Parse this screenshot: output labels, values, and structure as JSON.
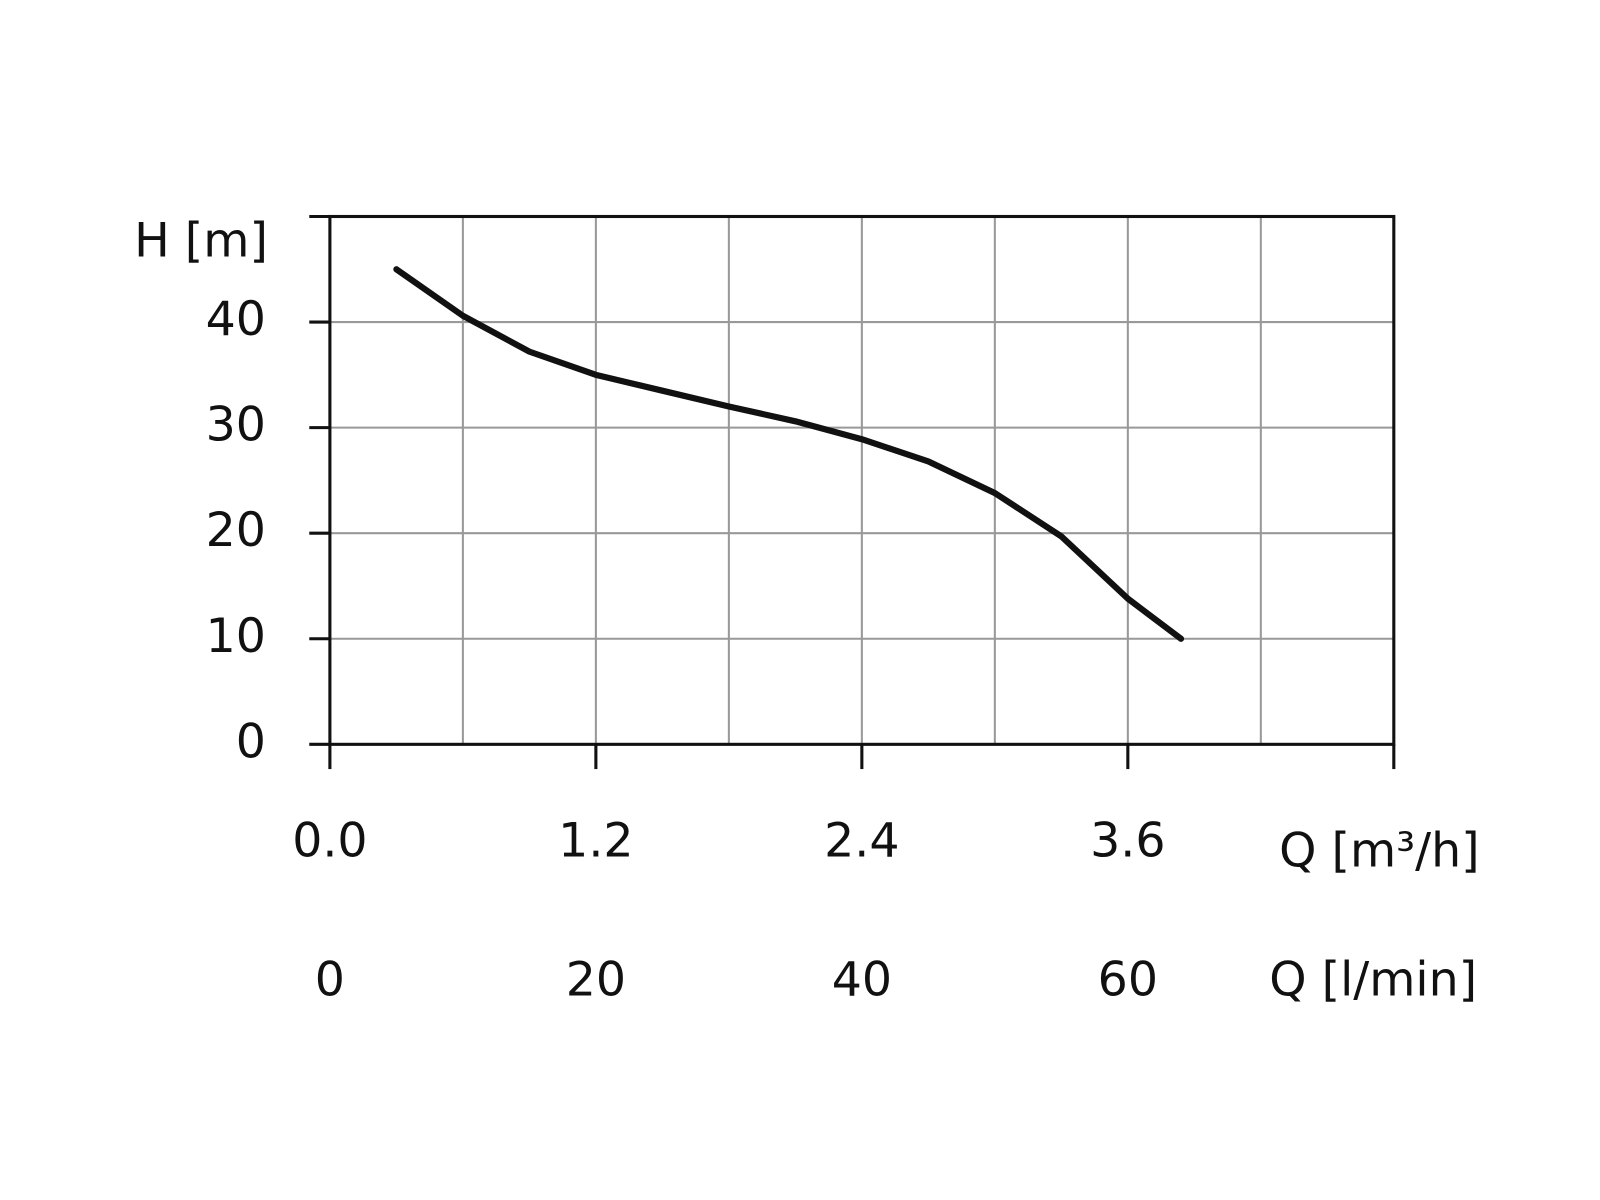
{
  "chart_data": {
    "type": "line",
    "y_label": "H [m]",
    "x_label": "Q [l/min]",
    "x2_label": "Q [m³/h]",
    "xlim": [
      0,
      80
    ],
    "xticks": [
      0,
      20,
      40,
      60
    ],
    "xgrid": [
      10,
      20,
      30,
      40,
      50,
      60,
      70
    ],
    "x2lim": [
      0,
      4.8
    ],
    "x2ticks": [
      {
        "value": 0,
        "label": "0.0"
      },
      1.2,
      2.4,
      3.6
    ],
    "ylim": [
      0,
      50
    ],
    "yticks": [
      0,
      10,
      20,
      30,
      40
    ],
    "grid": true,
    "series": [
      {
        "name": "H",
        "color": "#111111",
        "x": [
          5,
          10,
          15,
          20,
          25,
          30,
          35,
          40,
          45,
          50,
          55,
          60,
          64
        ],
        "values": [
          45,
          40.6,
          37.2,
          35.0,
          33.5,
          32.0,
          30.6,
          28.9,
          26.8,
          23.8,
          19.7,
          13.8,
          10
        ]
      }
    ]
  }
}
